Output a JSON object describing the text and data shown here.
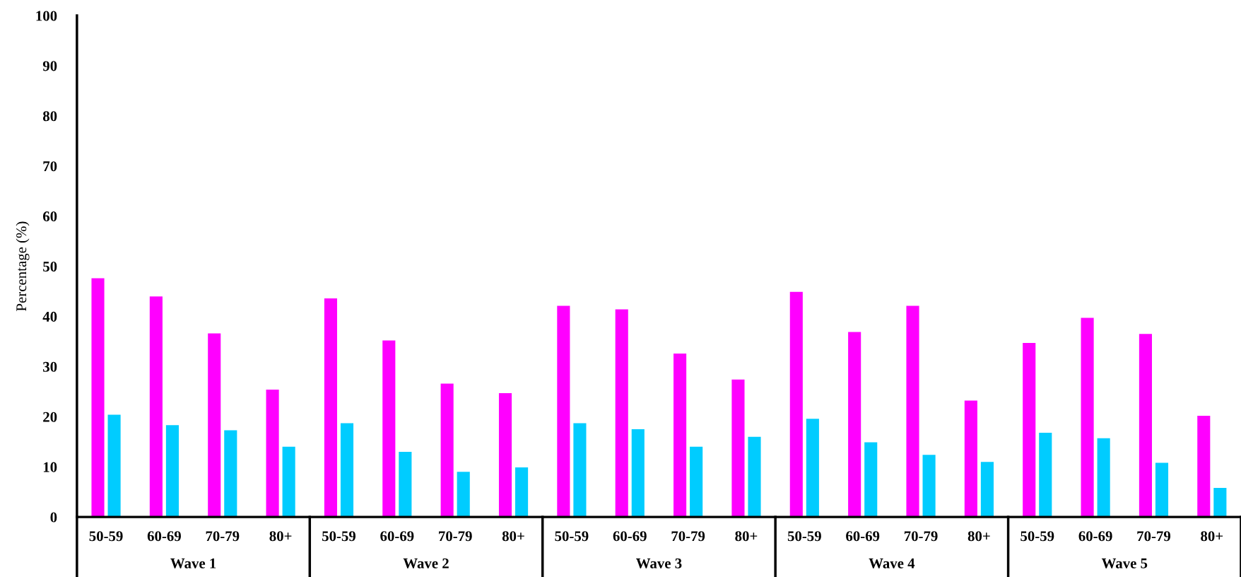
{
  "chart_data": {
    "type": "bar",
    "ylabel": "Percentage (%)",
    "categories": [
      "50-59",
      "60-69",
      "70-79",
      "80+",
      "50-59",
      "60-69",
      "70-79",
      "80+",
      "50-59",
      "60-69",
      "70-79",
      "80+",
      "50-59",
      "60-69",
      "70-79",
      "80+",
      "50-59",
      "60-69",
      "70-79",
      "80+"
    ],
    "series": [
      {
        "color": "#ff00ff",
        "values": [
          47.6,
          44.0,
          36.6,
          25.4,
          43.6,
          35.2,
          26.6,
          24.7,
          42.1,
          41.4,
          32.6,
          27.4,
          44.9,
          36.9,
          42.1,
          23.2,
          34.7,
          39.7,
          36.5,
          20.2
        ]
      },
      {
        "color": "#00ccff",
        "values": [
          20.4,
          18.3,
          17.3,
          14.0,
          18.7,
          13.0,
          9.0,
          9.9,
          18.7,
          17.5,
          14.0,
          16.0,
          19.6,
          14.9,
          12.4,
          11.0,
          16.8,
          15.7,
          10.8,
          5.8
        ]
      }
    ],
    "annotations": [
      "Wave 1",
      "Wave 2",
      "Wave 3",
      "Wave 4",
      "Wave 5"
    ],
    "ylim": [
      0,
      100
    ],
    "yticks": [
      0,
      10,
      20,
      30,
      40,
      50,
      60,
      70,
      80,
      90,
      100
    ],
    "grid": false,
    "legend": false
  }
}
